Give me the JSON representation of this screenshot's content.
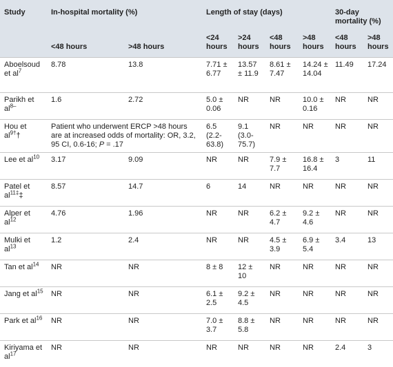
{
  "header": {
    "study": "Study",
    "groups": [
      "In-hospital mortality (%)",
      "Length of stay (days)",
      "30-day mortality (%)"
    ],
    "subheaders": [
      "<48 hours",
      ">48 hours",
      "<24 hours",
      ">24 hours",
      "<48 hours",
      ">48 hours",
      "<48 hours",
      ">48 hours"
    ]
  },
  "rows": [
    {
      "study": {
        "name": "Aboelsoud et al",
        "sup": "7"
      },
      "cells": [
        "8.78",
        "13.8",
        "7.71 ± 6.77",
        "13.57 ± 11.9",
        "8.61 ± 7.47",
        "14.24 ± 14.04",
        "11.49",
        "17.24"
      ]
    },
    {
      "study": {
        "name": "Parikh et al",
        "sup": "8–"
      },
      "cells": [
        "1.6",
        "2.72",
        "5.0 ± 0.06",
        "NR",
        "NR",
        "10.0 ± 0.16",
        "NR",
        "NR"
      ]
    },
    {
      "study": {
        "name": "Hou et al",
        "sup": "9†",
        "after": "†"
      },
      "note": {
        "before": "Patient who underwent ERCP >48 hours are at increased odds of mortality: OR, 3.2, 95 CI, 0.6-16; ",
        "italic": "P",
        "after": " = .17"
      },
      "cells": [
        "6.5 (2.2-63.8)",
        "9.1 (3.0-75.7)",
        "NR",
        "NR",
        "NR",
        "NR"
      ]
    },
    {
      "study": {
        "name": "Lee et al",
        "sup": "10"
      },
      "cells": [
        "3.17",
        "9.09",
        "NR",
        "NR",
        "7.9 ± 7.7",
        "16.8 ± 16.4",
        "3",
        "11"
      ]
    },
    {
      "study": {
        "name": "Patel et al",
        "sup": "11‡",
        "after": "‡"
      },
      "cells": [
        "8.57",
        "14.7",
        "6",
        "14",
        "NR",
        "NR",
        "NR",
        "NR"
      ]
    },
    {
      "study": {
        "name": "Alper et al",
        "sup": "12"
      },
      "cells": [
        "4.76",
        "1.96",
        "NR",
        "NR",
        "6.2 ± 4.7",
        "9.2 ± 4.6",
        "NR",
        "NR"
      ]
    },
    {
      "study": {
        "name": "Mulki et al",
        "sup": "13"
      },
      "cells": [
        "1.2",
        "2.4",
        "NR",
        "NR",
        "4.5 ± 3.9",
        "6.9 ± 5.4",
        "3.4",
        "13"
      ]
    },
    {
      "study": {
        "name": "Tan et al",
        "sup": "14"
      },
      "cells": [
        "NR",
        "NR",
        "8 ± 8",
        "12 ± 10",
        "NR",
        "NR",
        "NR",
        "NR"
      ]
    },
    {
      "study": {
        "name": "Jang et al",
        "sup": "15"
      },
      "cells": [
        "NR",
        "NR",
        "6.1 ± 2.5",
        "9.2 ± 4.5",
        "NR",
        "NR",
        "NR",
        "NR"
      ]
    },
    {
      "study": {
        "name": "Park et al",
        "sup": "16"
      },
      "cells": [
        "NR",
        "NR",
        "7.0 ± 3.7",
        "8.8 ± 5.8",
        "NR",
        "NR",
        "NR",
        "NR"
      ]
    },
    {
      "study": {
        "name": "Kiriyama et al",
        "sup": "17"
      },
      "cells": [
        "NR",
        "NR",
        "NR",
        "NR",
        "NR",
        "NR",
        "2.4",
        "3"
      ]
    }
  ]
}
